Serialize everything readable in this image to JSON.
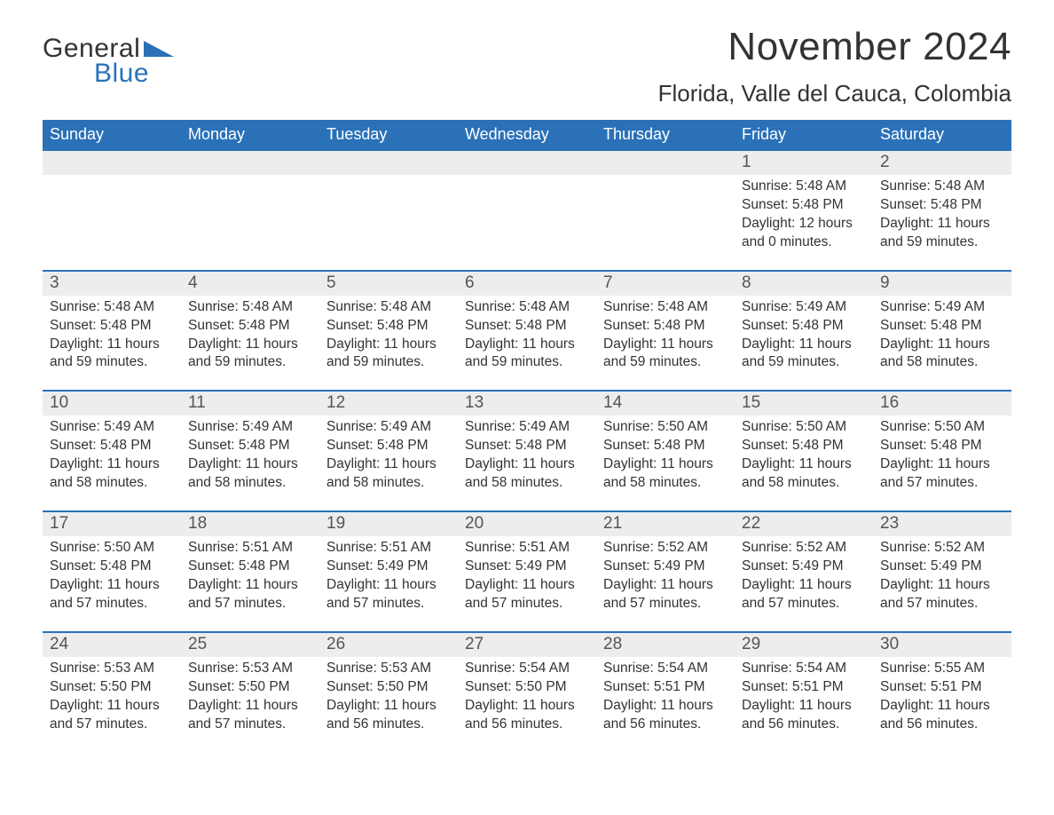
{
  "brand": {
    "word1": "General",
    "word2": "Blue",
    "word1_color": "#333333",
    "word2_color": "#2a71b8",
    "triangle_color": "#2a71b8",
    "fontsize": 30
  },
  "title": {
    "month_year": "November 2024",
    "location": "Florida, Valle del Cauca, Colombia",
    "month_color": "#333333",
    "month_fontsize": 44,
    "location_fontsize": 26
  },
  "calendar": {
    "type": "table",
    "header_bg": "#2a71b8",
    "header_fg": "#ffffff",
    "daynum_bg": "#ededed",
    "week_divider_color": "#2a71b8",
    "body_fontsize": 15.5,
    "daynum_fontsize": 19,
    "header_fontsize": 18,
    "columns": [
      "Sunday",
      "Monday",
      "Tuesday",
      "Wednesday",
      "Thursday",
      "Friday",
      "Saturday"
    ],
    "weeks": [
      [
        null,
        null,
        null,
        null,
        null,
        {
          "n": "1",
          "sunrise": "Sunrise: 5:48 AM",
          "sunset": "Sunset: 5:48 PM",
          "daylight1": "Daylight: 12 hours",
          "daylight2": "and 0 minutes."
        },
        {
          "n": "2",
          "sunrise": "Sunrise: 5:48 AM",
          "sunset": "Sunset: 5:48 PM",
          "daylight1": "Daylight: 11 hours",
          "daylight2": "and 59 minutes."
        }
      ],
      [
        {
          "n": "3",
          "sunrise": "Sunrise: 5:48 AM",
          "sunset": "Sunset: 5:48 PM",
          "daylight1": "Daylight: 11 hours",
          "daylight2": "and 59 minutes."
        },
        {
          "n": "4",
          "sunrise": "Sunrise: 5:48 AM",
          "sunset": "Sunset: 5:48 PM",
          "daylight1": "Daylight: 11 hours",
          "daylight2": "and 59 minutes."
        },
        {
          "n": "5",
          "sunrise": "Sunrise: 5:48 AM",
          "sunset": "Sunset: 5:48 PM",
          "daylight1": "Daylight: 11 hours",
          "daylight2": "and 59 minutes."
        },
        {
          "n": "6",
          "sunrise": "Sunrise: 5:48 AM",
          "sunset": "Sunset: 5:48 PM",
          "daylight1": "Daylight: 11 hours",
          "daylight2": "and 59 minutes."
        },
        {
          "n": "7",
          "sunrise": "Sunrise: 5:48 AM",
          "sunset": "Sunset: 5:48 PM",
          "daylight1": "Daylight: 11 hours",
          "daylight2": "and 59 minutes."
        },
        {
          "n": "8",
          "sunrise": "Sunrise: 5:49 AM",
          "sunset": "Sunset: 5:48 PM",
          "daylight1": "Daylight: 11 hours",
          "daylight2": "and 59 minutes."
        },
        {
          "n": "9",
          "sunrise": "Sunrise: 5:49 AM",
          "sunset": "Sunset: 5:48 PM",
          "daylight1": "Daylight: 11 hours",
          "daylight2": "and 58 minutes."
        }
      ],
      [
        {
          "n": "10",
          "sunrise": "Sunrise: 5:49 AM",
          "sunset": "Sunset: 5:48 PM",
          "daylight1": "Daylight: 11 hours",
          "daylight2": "and 58 minutes."
        },
        {
          "n": "11",
          "sunrise": "Sunrise: 5:49 AM",
          "sunset": "Sunset: 5:48 PM",
          "daylight1": "Daylight: 11 hours",
          "daylight2": "and 58 minutes."
        },
        {
          "n": "12",
          "sunrise": "Sunrise: 5:49 AM",
          "sunset": "Sunset: 5:48 PM",
          "daylight1": "Daylight: 11 hours",
          "daylight2": "and 58 minutes."
        },
        {
          "n": "13",
          "sunrise": "Sunrise: 5:49 AM",
          "sunset": "Sunset: 5:48 PM",
          "daylight1": "Daylight: 11 hours",
          "daylight2": "and 58 minutes."
        },
        {
          "n": "14",
          "sunrise": "Sunrise: 5:50 AM",
          "sunset": "Sunset: 5:48 PM",
          "daylight1": "Daylight: 11 hours",
          "daylight2": "and 58 minutes."
        },
        {
          "n": "15",
          "sunrise": "Sunrise: 5:50 AM",
          "sunset": "Sunset: 5:48 PM",
          "daylight1": "Daylight: 11 hours",
          "daylight2": "and 58 minutes."
        },
        {
          "n": "16",
          "sunrise": "Sunrise: 5:50 AM",
          "sunset": "Sunset: 5:48 PM",
          "daylight1": "Daylight: 11 hours",
          "daylight2": "and 57 minutes."
        }
      ],
      [
        {
          "n": "17",
          "sunrise": "Sunrise: 5:50 AM",
          "sunset": "Sunset: 5:48 PM",
          "daylight1": "Daylight: 11 hours",
          "daylight2": "and 57 minutes."
        },
        {
          "n": "18",
          "sunrise": "Sunrise: 5:51 AM",
          "sunset": "Sunset: 5:48 PM",
          "daylight1": "Daylight: 11 hours",
          "daylight2": "and 57 minutes."
        },
        {
          "n": "19",
          "sunrise": "Sunrise: 5:51 AM",
          "sunset": "Sunset: 5:49 PM",
          "daylight1": "Daylight: 11 hours",
          "daylight2": "and 57 minutes."
        },
        {
          "n": "20",
          "sunrise": "Sunrise: 5:51 AM",
          "sunset": "Sunset: 5:49 PM",
          "daylight1": "Daylight: 11 hours",
          "daylight2": "and 57 minutes."
        },
        {
          "n": "21",
          "sunrise": "Sunrise: 5:52 AM",
          "sunset": "Sunset: 5:49 PM",
          "daylight1": "Daylight: 11 hours",
          "daylight2": "and 57 minutes."
        },
        {
          "n": "22",
          "sunrise": "Sunrise: 5:52 AM",
          "sunset": "Sunset: 5:49 PM",
          "daylight1": "Daylight: 11 hours",
          "daylight2": "and 57 minutes."
        },
        {
          "n": "23",
          "sunrise": "Sunrise: 5:52 AM",
          "sunset": "Sunset: 5:49 PM",
          "daylight1": "Daylight: 11 hours",
          "daylight2": "and 57 minutes."
        }
      ],
      [
        {
          "n": "24",
          "sunrise": "Sunrise: 5:53 AM",
          "sunset": "Sunset: 5:50 PM",
          "daylight1": "Daylight: 11 hours",
          "daylight2": "and 57 minutes."
        },
        {
          "n": "25",
          "sunrise": "Sunrise: 5:53 AM",
          "sunset": "Sunset: 5:50 PM",
          "daylight1": "Daylight: 11 hours",
          "daylight2": "and 57 minutes."
        },
        {
          "n": "26",
          "sunrise": "Sunrise: 5:53 AM",
          "sunset": "Sunset: 5:50 PM",
          "daylight1": "Daylight: 11 hours",
          "daylight2": "and 56 minutes."
        },
        {
          "n": "27",
          "sunrise": "Sunrise: 5:54 AM",
          "sunset": "Sunset: 5:50 PM",
          "daylight1": "Daylight: 11 hours",
          "daylight2": "and 56 minutes."
        },
        {
          "n": "28",
          "sunrise": "Sunrise: 5:54 AM",
          "sunset": "Sunset: 5:51 PM",
          "daylight1": "Daylight: 11 hours",
          "daylight2": "and 56 minutes."
        },
        {
          "n": "29",
          "sunrise": "Sunrise: 5:54 AM",
          "sunset": "Sunset: 5:51 PM",
          "daylight1": "Daylight: 11 hours",
          "daylight2": "and 56 minutes."
        },
        {
          "n": "30",
          "sunrise": "Sunrise: 5:55 AM",
          "sunset": "Sunset: 5:51 PM",
          "daylight1": "Daylight: 11 hours",
          "daylight2": "and 56 minutes."
        }
      ]
    ]
  }
}
